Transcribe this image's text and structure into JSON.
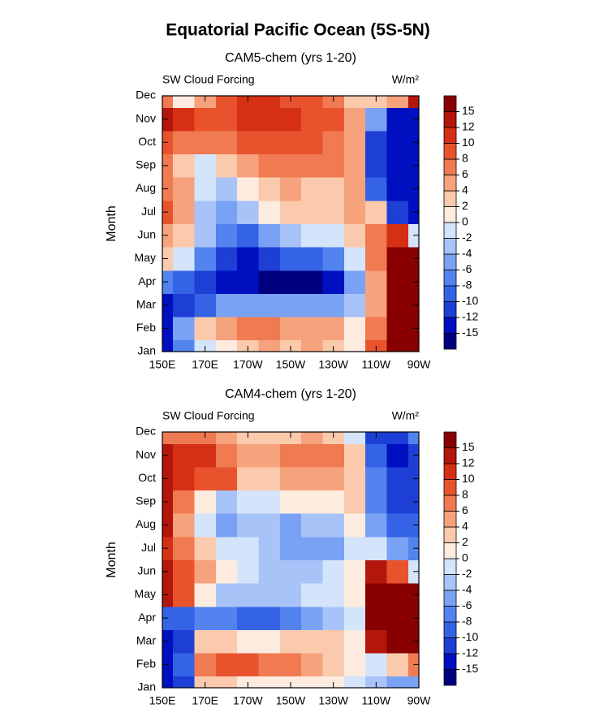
{
  "title": "Equatorial Pacific Ocean (5S-5N)",
  "chart_data": [
    {
      "type": "heatmap",
      "title": "CAM5-chem (yrs 1-20)",
      "left_string": "SW Cloud Forcing",
      "right_string": "W/m²",
      "ylabel": "Month",
      "x": [
        150,
        160,
        170,
        180,
        190,
        200,
        210,
        220,
        230,
        240,
        250,
        260,
        270
      ],
      "xlim": [
        150,
        270
      ],
      "xticks": [
        {
          "value": 150,
          "label": "150E"
        },
        {
          "value": 170,
          "label": "170E"
        },
        {
          "value": 190,
          "label": "170W"
        },
        {
          "value": 210,
          "label": "150W"
        },
        {
          "value": 230,
          "label": "130W"
        },
        {
          "value": 250,
          "label": "110W"
        },
        {
          "value": 270,
          "label": "90W"
        }
      ],
      "categories": [
        "Jan",
        "Feb",
        "Mar",
        "Apr",
        "May",
        "Jun",
        "Jul",
        "Aug",
        "Sep",
        "Oct",
        "Nov",
        "Dec"
      ],
      "z": [
        [
          -14,
          -8,
          -2,
          1,
          3,
          4,
          3,
          4,
          3,
          0,
          8,
          16,
          16
        ],
        [
          -14,
          -6,
          2,
          4,
          6,
          6,
          5,
          5,
          4,
          0,
          6,
          16,
          16
        ],
        [
          -14,
          -12,
          -9,
          -6,
          -6,
          -6,
          -6,
          -6,
          -6,
          -4,
          4,
          16,
          16
        ],
        [
          -8,
          -10,
          -11,
          -13,
          -15,
          -16,
          -16,
          -16,
          -15,
          -6,
          4,
          16,
          16
        ],
        [
          2,
          -2,
          -8,
          -12,
          -13,
          -12,
          -10,
          -9,
          -8,
          -2,
          6,
          16,
          16
        ],
        [
          4,
          2,
          -4,
          -8,
          -10,
          -6,
          -4,
          -2,
          -1,
          2,
          6,
          10,
          -2
        ],
        [
          8,
          4,
          -3,
          -6,
          -3,
          0,
          2,
          2,
          2,
          4,
          2,
          -12,
          -15
        ],
        [
          6,
          4,
          -2,
          -4,
          0,
          3,
          4,
          3,
          3,
          4,
          -10,
          -15,
          -15
        ],
        [
          6,
          2,
          -2,
          2,
          5,
          6,
          6,
          6,
          6,
          5,
          -12,
          -15,
          -15
        ],
        [
          8,
          6,
          6,
          7,
          8,
          9,
          9,
          8,
          7,
          5,
          -12,
          -15,
          -15
        ],
        [
          14,
          10,
          8,
          9,
          11,
          11,
          10,
          9,
          8,
          4,
          -6,
          -15,
          -14
        ],
        [
          6,
          0,
          4,
          8,
          10,
          10,
          9,
          8,
          6,
          2,
          2,
          4,
          12
        ]
      ],
      "levels": [
        -15,
        -12,
        -10,
        -8,
        -6,
        -4,
        -2,
        0,
        2,
        4,
        6,
        8,
        10,
        12,
        15
      ],
      "colors": [
        "#00007f",
        "#0010c0",
        "#1d3fd6",
        "#3463e6",
        "#5283ef",
        "#7aa2f4",
        "#a7c3f8",
        "#d4e4fb",
        "#fdebe0",
        "#fbc9ac",
        "#f6a27d",
        "#f07a51",
        "#e8532d",
        "#d63014",
        "#b3160a",
        "#890000"
      ]
    },
    {
      "type": "heatmap",
      "title": "CAM4-chem (yrs 1-20)",
      "left_string": "SW Cloud Forcing",
      "right_string": "W/m²",
      "ylabel": "Month",
      "x": [
        150,
        160,
        170,
        180,
        190,
        200,
        210,
        220,
        230,
        240,
        250,
        260,
        270
      ],
      "xlim": [
        150,
        270
      ],
      "xticks": [
        {
          "value": 150,
          "label": "150E"
        },
        {
          "value": 170,
          "label": "170E"
        },
        {
          "value": 190,
          "label": "170W"
        },
        {
          "value": 210,
          "label": "150W"
        },
        {
          "value": 230,
          "label": "130W"
        },
        {
          "value": 250,
          "label": "110W"
        },
        {
          "value": 270,
          "label": "90W"
        }
      ],
      "categories": [
        "Jan",
        "Feb",
        "Mar",
        "Apr",
        "May",
        "Jun",
        "Jul",
        "Aug",
        "Sep",
        "Oct",
        "Nov",
        "Dec"
      ],
      "z": [
        [
          -15,
          -12,
          2,
          3,
          1,
          0,
          0,
          0,
          1,
          -2,
          -4,
          -6,
          -6
        ],
        [
          -15,
          -10,
          6,
          9,
          8,
          6,
          6,
          4,
          2,
          0,
          -2,
          2,
          6
        ],
        [
          -15,
          -12,
          2,
          2,
          1,
          1,
          2,
          2,
          2,
          0,
          12,
          16,
          16
        ],
        [
          -10,
          -9,
          -8,
          -8,
          -10,
          -10,
          -8,
          -6,
          -4,
          -1,
          16,
          16,
          16
        ],
        [
          14,
          8,
          1,
          -3,
          -4,
          -4,
          -3,
          -2,
          -1,
          0,
          16,
          16,
          16
        ],
        [
          12,
          9,
          4,
          0,
          -2,
          -3,
          -3,
          -3,
          -2,
          0,
          12,
          8,
          -1
        ],
        [
          10,
          7,
          2,
          -1,
          -2,
          -4,
          -5,
          -5,
          -6,
          -1,
          -2,
          -6,
          -8
        ],
        [
          12,
          4,
          -2,
          -6,
          -4,
          -4,
          -5,
          -4,
          -3,
          1,
          -6,
          -10,
          -10
        ],
        [
          14,
          6,
          1,
          -4,
          -2,
          -2,
          0,
          0,
          0,
          2,
          -8,
          -12,
          -12
        ],
        [
          14,
          10,
          8,
          8,
          3,
          2,
          4,
          4,
          4,
          2,
          -8,
          -12,
          -12
        ],
        [
          14,
          10,
          10,
          6,
          4,
          5,
          6,
          7,
          6,
          2,
          -10,
          -13,
          -12
        ],
        [
          6,
          6,
          6,
          4,
          2,
          3,
          3,
          4,
          2,
          -2,
          -12,
          -12,
          -8
        ]
      ],
      "levels": [
        -15,
        -12,
        -10,
        -8,
        -6,
        -4,
        -2,
        0,
        2,
        4,
        6,
        8,
        10,
        12,
        15
      ],
      "colors": [
        "#00007f",
        "#0010c0",
        "#1d3fd6",
        "#3463e6",
        "#5283ef",
        "#7aa2f4",
        "#a7c3f8",
        "#d4e4fb",
        "#fdebe0",
        "#fbc9ac",
        "#f6a27d",
        "#f07a51",
        "#e8532d",
        "#d63014",
        "#b3160a",
        "#890000"
      ]
    }
  ]
}
